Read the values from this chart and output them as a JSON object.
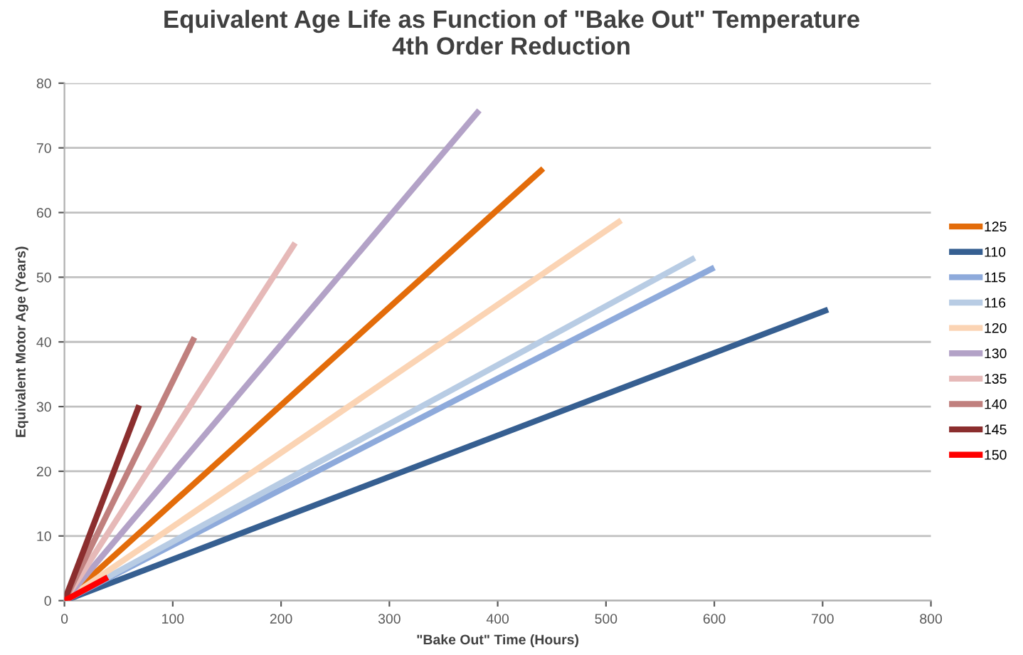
{
  "chart_data": {
    "type": "line",
    "title": "Equivalent Age Life as Function of \"Bake Out\" Temperature\n4th Order Reduction",
    "xlabel": "\"Bake Out\" Time (Hours)",
    "ylabel": "Equivalent Motor Age (Years)",
    "xlim": [
      0,
      800
    ],
    "xticks": [
      0,
      100,
      200,
      300,
      400,
      500,
      600,
      700,
      800
    ],
    "ylim": [
      0,
      80
    ],
    "yticks": [
      0,
      10,
      20,
      30,
      40,
      50,
      60,
      70,
      80
    ],
    "grid": "y",
    "legend": "right",
    "marker": "none",
    "line_style": "solid",
    "series": [
      {
        "name": "125",
        "color": "#e36c0a",
        "x": [
          0,
          442
        ],
        "values": [
          0,
          66.8
        ]
      },
      {
        "name": "110",
        "color": "#365f91",
        "x": [
          0,
          705
        ],
        "values": [
          0,
          45
        ]
      },
      {
        "name": "115",
        "color": "#8eaadb",
        "x": [
          0,
          600
        ],
        "values": [
          0,
          51.5
        ]
      },
      {
        "name": "116",
        "color": "#b8cce4",
        "x": [
          0,
          582
        ],
        "values": [
          0,
          53
        ]
      },
      {
        "name": "120",
        "color": "#fbd4b4",
        "x": [
          0,
          514
        ],
        "values": [
          0,
          58.8
        ]
      },
      {
        "name": "130",
        "color": "#b3a2c7",
        "x": [
          0,
          383
        ],
        "values": [
          0,
          75.8
        ]
      },
      {
        "name": "135",
        "color": "#e6b9b8",
        "x": [
          0,
          213
        ],
        "values": [
          0,
          55.3
        ]
      },
      {
        "name": "140",
        "color": "#c0807e",
        "x": [
          0,
          120
        ],
        "values": [
          0,
          40.7
        ]
      },
      {
        "name": "145",
        "color": "#8b2e2e",
        "x": [
          0,
          69
        ],
        "values": [
          0,
          30.2
        ]
      },
      {
        "name": "150",
        "color": "#ff0000",
        "x": [
          0,
          40
        ],
        "values": [
          0,
          3.6
        ]
      }
    ]
  }
}
